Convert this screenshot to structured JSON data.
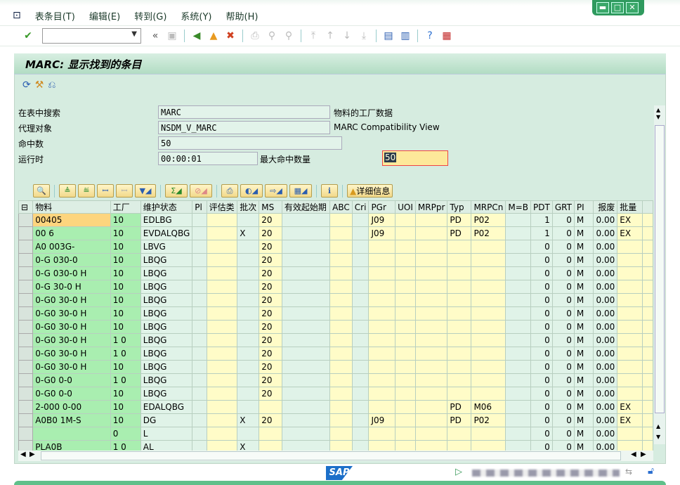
{
  "menu": [
    "表条目(T)",
    "编辑(E)",
    "转到(G)",
    "系统(Y)",
    "帮助(H)"
  ],
  "title": "MARC:  显示找到的条目",
  "form": {
    "search_label": "在表中搜索",
    "search_value": "MARC",
    "search_desc": "物料的工厂数据",
    "proxy_label": "代理对象",
    "proxy_value": "NSDM_V_MARC",
    "proxy_desc": "MARC Compatibility View",
    "hits_label": "命中数",
    "hits_value": "50",
    "runtime_label": "运行时",
    "runtime_value": "00:00:01",
    "maxhits_label": "最大命中数量",
    "maxhits_value": "50"
  },
  "alv_toolbar": {
    "details_label": "详细信息"
  },
  "grid": {
    "columns": [
      "物料",
      "工厂",
      "维护状态",
      "Pl",
      "评估类",
      "批次",
      "MS",
      "有效起始期",
      "ABC",
      "Cri",
      "PGr",
      "UOI",
      "MRPpr",
      "Typ",
      "MRPCn",
      "M=B",
      "PDT",
      "GRT",
      "PI",
      "报废",
      "批量"
    ],
    "rows": [
      [
        "00405",
        "10",
        "EDLBG",
        "",
        "",
        "",
        "20",
        "",
        "",
        "",
        "J09",
        "",
        "",
        "PD",
        "P02",
        "",
        "1",
        "0",
        "M",
        "0.00",
        "EX"
      ],
      [
        "00 6",
        "10",
        "EVDALQBG",
        "",
        "",
        "X",
        "20",
        "",
        "",
        "",
        "J09",
        "",
        "",
        "PD",
        "P02",
        "",
        "1",
        "0",
        "M",
        "0.00",
        "EX"
      ],
      [
        "A0 003G-",
        "10",
        "LBVG",
        "",
        "",
        "",
        "20",
        "",
        "",
        "",
        "",
        "",
        "",
        "",
        "",
        "",
        "0",
        "0",
        "M",
        "0.00",
        ""
      ],
      [
        "0-G 030-0",
        "10",
        "LBQG",
        "",
        "",
        "",
        "20",
        "",
        "",
        "",
        "",
        "",
        "",
        "",
        "",
        "",
        "0",
        "0",
        "M",
        "0.00",
        ""
      ],
      [
        "0-G 030-0 H",
        "10",
        "LBQG",
        "",
        "",
        "",
        "20",
        "",
        "",
        "",
        "",
        "",
        "",
        "",
        "",
        "",
        "0",
        "0",
        "M",
        "0.00",
        ""
      ],
      [
        "0-G 30-0 H",
        "10",
        "LBQG",
        "",
        "",
        "",
        "20",
        "",
        "",
        "",
        "",
        "",
        "",
        "",
        "",
        "",
        "0",
        "0",
        "M",
        "0.00",
        ""
      ],
      [
        "0-G0 30-0 H",
        "10",
        "LBQG",
        "",
        "",
        "",
        "20",
        "",
        "",
        "",
        "",
        "",
        "",
        "",
        "",
        "",
        "0",
        "0",
        "M",
        "0.00",
        ""
      ],
      [
        "0-G0 30-0 H",
        "10",
        "LBQG",
        "",
        "",
        "",
        "20",
        "",
        "",
        "",
        "",
        "",
        "",
        "",
        "",
        "",
        "0",
        "0",
        "M",
        "0.00",
        ""
      ],
      [
        "0-G0 30-0 H",
        "10",
        "LBQG",
        "",
        "",
        "",
        "20",
        "",
        "",
        "",
        "",
        "",
        "",
        "",
        "",
        "",
        "0",
        "0",
        "M",
        "0.00",
        ""
      ],
      [
        "0-G0 30-0 H",
        "1 0",
        "LBQG",
        "",
        "",
        "",
        "20",
        "",
        "",
        "",
        "",
        "",
        "",
        "",
        "",
        "",
        "0",
        "0",
        "M",
        "0.00",
        ""
      ],
      [
        "0-G0 30-0 H",
        "1 0",
        "LBQG",
        "",
        "",
        "",
        "20",
        "",
        "",
        "",
        "",
        "",
        "",
        "",
        "",
        "",
        "0",
        "0",
        "M",
        "0.00",
        ""
      ],
      [
        "0-G0 30-0 H",
        "10",
        "LBQG",
        "",
        "",
        "",
        "20",
        "",
        "",
        "",
        "",
        "",
        "",
        "",
        "",
        "",
        "0",
        "0",
        "M",
        "0.00",
        ""
      ],
      [
        "0-G0 0-0",
        "1 0",
        "LBQG",
        "",
        "",
        "",
        "20",
        "",
        "",
        "",
        "",
        "",
        "",
        "",
        "",
        "",
        "0",
        "0",
        "M",
        "0.00",
        ""
      ],
      [
        "0-G0 0-0",
        "10",
        "LBQG",
        "",
        "",
        "",
        "20",
        "",
        "",
        "",
        "",
        "",
        "",
        "",
        "",
        "",
        "0",
        "0",
        "M",
        "0.00",
        ""
      ],
      [
        "2-000 0-00",
        "10",
        "EDALQBG",
        "",
        "",
        "",
        "",
        "",
        "",
        "",
        "",
        "",
        "",
        "PD",
        "M06",
        "",
        "0",
        "0",
        "M",
        "0.00",
        "EX"
      ],
      [
        "A0B0 1M-S",
        "10",
        "DG",
        "",
        "",
        "X",
        "20",
        "",
        "",
        "",
        "J09",
        "",
        "",
        "PD",
        "P02",
        "",
        "0",
        "0",
        "M",
        "0.00",
        "EX"
      ],
      [
        "",
        "0",
        "L",
        "",
        "",
        "",
        "",
        "",
        "",
        "",
        "",
        "",
        "",
        "",
        "",
        "",
        "0",
        "0",
        "M",
        "0.00",
        ""
      ],
      [
        "PLA0B",
        "1 0",
        "AL",
        "",
        "",
        "X",
        "",
        "",
        "",
        "",
        "",
        "",
        "",
        "",
        "",
        "",
        "0",
        "0",
        "M",
        "0.00",
        ""
      ]
    ]
  },
  "colors": {
    "key_column": "#a9eeb0",
    "yellow_column": "#fffcc8",
    "green_column": "#e0f3e8",
    "title_band": "#b2dcc3"
  }
}
